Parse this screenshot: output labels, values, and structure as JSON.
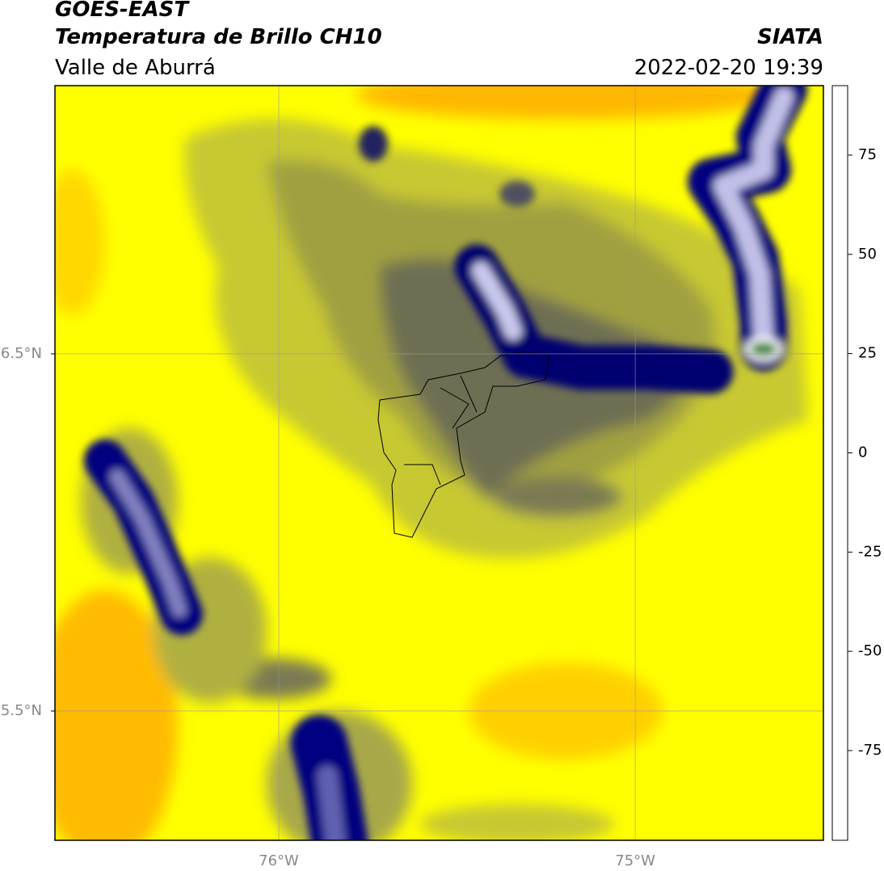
{
  "header": {
    "source": "GOES-EAST",
    "title": "Temperatura de Brillo CH10",
    "region": "Valle de Aburrá",
    "agency": "SIATA",
    "datetime": "2022-02-20 19:39"
  },
  "map": {
    "xlim": [
      -76.628,
      -74.472
    ],
    "ylim": [
      5.138,
      7.251
    ],
    "xticks": [
      {
        "value": -76,
        "label": "76°W"
      },
      {
        "value": -75,
        "label": "75°W"
      }
    ],
    "yticks": [
      {
        "value": 6.5,
        "label": "6.5°N"
      },
      {
        "value": 5.5,
        "label": "5.5°N"
      }
    ],
    "grid": true
  },
  "colorbar": {
    "lim": [
      -97.6,
      92.5
    ],
    "ticks": [
      75,
      50,
      25,
      0,
      -25,
      -50,
      -75
    ],
    "colormap": [
      {
        "value": -97.6,
        "color": "#ffffff"
      },
      {
        "value": -93.2,
        "color": "#ffffff"
      },
      {
        "value": -93,
        "color": "#00e8d8"
      },
      {
        "value": -85,
        "color": "#20b8a0"
      },
      {
        "value": -75,
        "color": "#2a9a60"
      },
      {
        "value": -62,
        "color": "#4a8a30"
      },
      {
        "value": -55,
        "color": "#b8d8b0"
      },
      {
        "value": -50,
        "color": "#ffffff"
      },
      {
        "value": -40,
        "color": "#8080c0"
      },
      {
        "value": -30,
        "color": "#000080"
      },
      {
        "value": -25,
        "color": "#3a3a5a"
      },
      {
        "value": -20,
        "color": "#8a8a40"
      },
      {
        "value": -15,
        "color": "#ffff00"
      },
      {
        "value": -5,
        "color": "#ffb000"
      },
      {
        "value": 4,
        "color": "#ff5000"
      },
      {
        "value": 8,
        "color": "#ff0000"
      },
      {
        "value": 8.5,
        "color": "#000000"
      },
      {
        "value": 92.5,
        "color": "#000000"
      }
    ]
  }
}
